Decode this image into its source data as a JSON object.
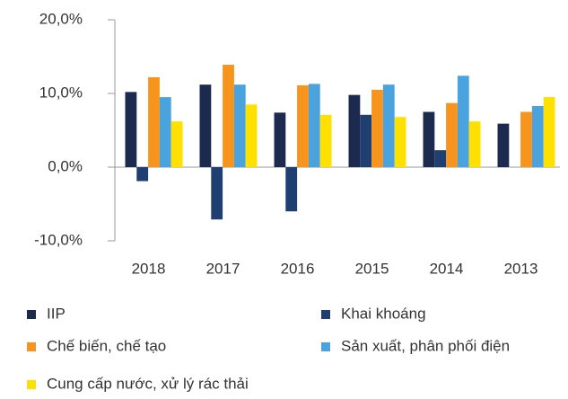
{
  "chart_data": {
    "type": "bar",
    "categories": [
      "2018",
      "2017",
      "2016",
      "2015",
      "2014",
      "2013"
    ],
    "series": [
      {
        "name": "IIP",
        "color": "#1b2a4e",
        "values": [
          10.2,
          11.2,
          7.4,
          9.8,
          7.5,
          5.9
        ]
      },
      {
        "name": "Khai khoáng",
        "color": "#1f3f73",
        "values": [
          -1.9,
          -7.1,
          -6.0,
          7.1,
          2.3,
          null
        ]
      },
      {
        "name": "Chế biến, chế tạo",
        "color": "#f7941d",
        "values": [
          12.2,
          13.9,
          11.1,
          10.5,
          8.7,
          7.5
        ]
      },
      {
        "name": "Sản xuất, phân phối điện",
        "color": "#4aa3df",
        "values": [
          9.5,
          11.2,
          11.3,
          11.2,
          12.4,
          8.3
        ]
      },
      {
        "name": "Cung cấp nước, xử lý rác thải",
        "color": "#ffe000",
        "values": [
          6.2,
          8.5,
          7.1,
          6.8,
          6.2,
          9.5
        ]
      }
    ],
    "ylim": [
      -10,
      20
    ],
    "yticks": [
      {
        "value": -10,
        "label": "-10,0%"
      },
      {
        "value": 0,
        "label": "0,0%"
      },
      {
        "value": 10,
        "label": "10,0%"
      },
      {
        "value": 20,
        "label": "20,0%"
      }
    ]
  }
}
